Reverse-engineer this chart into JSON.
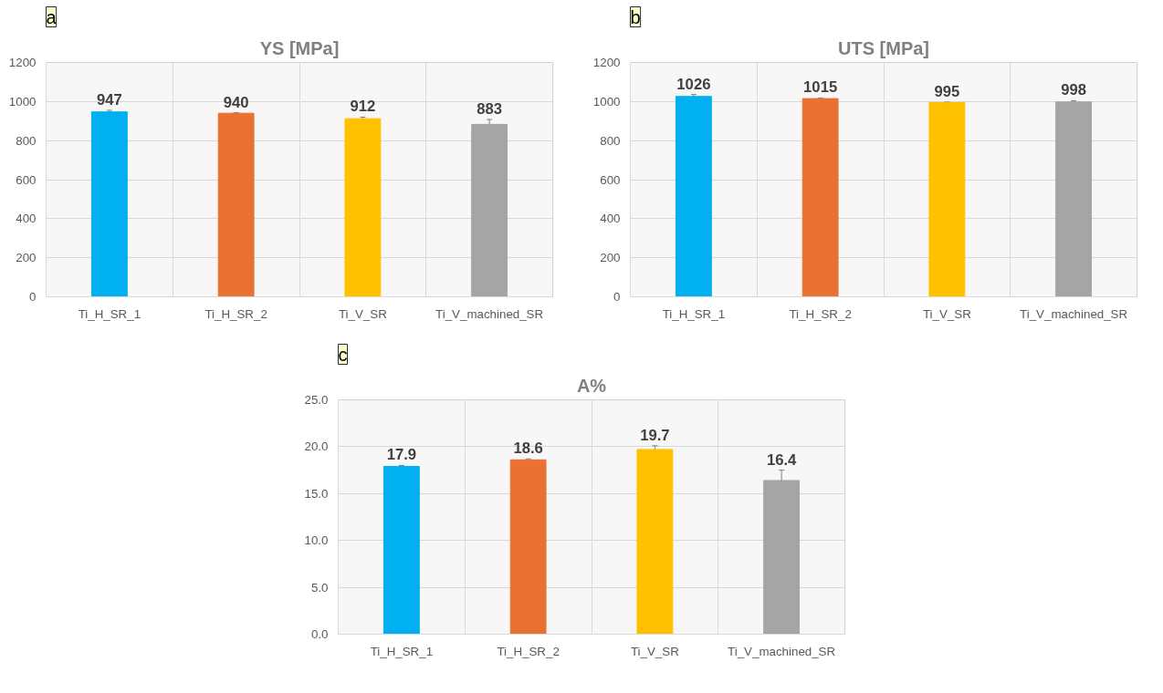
{
  "chart_data": [
    {
      "type": "bar",
      "title": "YS [MPa]",
      "annotations": [
        "a"
      ],
      "categories": [
        "Ti_H_SR_1",
        "Ti_H_SR_2",
        "Ti_V_SR",
        "Ti_V_machined_SR"
      ],
      "values": [
        947,
        940,
        912,
        883
      ],
      "errors": [
        8,
        3,
        8,
        25
      ],
      "colors": [
        "#00b0f0",
        "#e97132",
        "#ffc000",
        "#a5a5a5"
      ],
      "ylim": [
        0,
        1200
      ],
      "yticks": [
        0,
        200,
        400,
        600,
        800,
        1000,
        1200
      ],
      "data_labels": true,
      "grid": true
    },
    {
      "type": "bar",
      "title": "UTS [MPa]",
      "annotations": [
        "b"
      ],
      "categories": [
        "Ti_H_SR_1",
        "Ti_H_SR_2",
        "Ti_V_SR",
        "Ti_V_machined_SR"
      ],
      "values": [
        1026,
        1015,
        995,
        998
      ],
      "errors": [
        10,
        3,
        2,
        6
      ],
      "colors": [
        "#00b0f0",
        "#e97132",
        "#ffc000",
        "#a5a5a5"
      ],
      "ylim": [
        0,
        1200
      ],
      "yticks": [
        0,
        200,
        400,
        600,
        800,
        1000,
        1200
      ],
      "data_labels": true,
      "grid": true
    },
    {
      "type": "bar",
      "title": "A%",
      "annotations": [
        "c"
      ],
      "categories": [
        "Ti_H_SR_1",
        "Ti_H_SR_2",
        "Ti_V_SR",
        "Ti_V_machined_SR"
      ],
      "values": [
        17.9,
        18.6,
        19.7,
        16.4
      ],
      "errors": [
        0.1,
        0.1,
        0.4,
        1.1
      ],
      "colors": [
        "#00b0f0",
        "#e97132",
        "#ffc000",
        "#a5a5a5"
      ],
      "ylim": [
        0,
        25
      ],
      "yticks": [
        {
          "value": 0,
          "label": "0.0"
        },
        {
          "value": 5,
          "label": "5.0"
        },
        {
          "value": 10,
          "label": "10.0"
        },
        {
          "value": 15,
          "label": "15.0"
        },
        {
          "value": 20,
          "label": "20.0"
        },
        {
          "value": 25,
          "label": "25.0"
        }
      ],
      "data_labels": true,
      "grid": true
    }
  ]
}
